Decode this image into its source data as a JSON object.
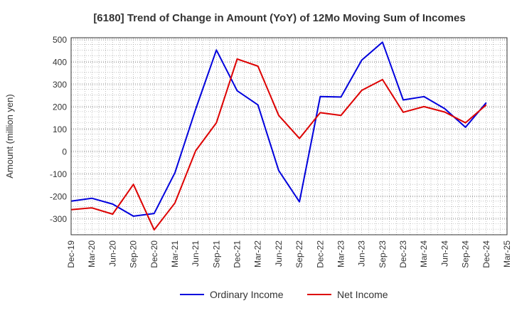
{
  "chart_data": {
    "type": "line",
    "title": "[6180]  Trend of Change in Amount (YoY) of 12Mo Moving Sum of Incomes",
    "xlabel": "",
    "ylabel": "Amount (million yen)",
    "ylim": [
      -370,
      510
    ],
    "yticks": [
      -300,
      -200,
      -100,
      0,
      100,
      200,
      300,
      400,
      500
    ],
    "grid": true,
    "legend_position": "bottom",
    "categories": [
      "Dec-19",
      "Mar-20",
      "Jun-20",
      "Sep-20",
      "Dec-20",
      "Mar-21",
      "Jun-21",
      "Sep-21",
      "Dec-21",
      "Mar-22",
      "Jun-22",
      "Sep-22",
      "Dec-22",
      "Mar-23",
      "Jun-23",
      "Sep-23",
      "Dec-23",
      "Mar-24",
      "Jun-24",
      "Sep-24",
      "Dec-24",
      "Mar-25"
    ],
    "series": [
      {
        "name": "Ordinary Income",
        "color": "#0000dd",
        "values": [
          -220,
          -207,
          -233,
          -287,
          -275,
          -93,
          190,
          455,
          273,
          210,
          -83,
          -223,
          247,
          245,
          410,
          490,
          232,
          247,
          193,
          110,
          220,
          null
        ]
      },
      {
        "name": "Net Income",
        "color": "#dd0000",
        "values": [
          -258,
          -250,
          -278,
          -145,
          -348,
          -228,
          5,
          130,
          415,
          383,
          163,
          60,
          175,
          163,
          275,
          323,
          177,
          202,
          178,
          130,
          210,
          null
        ]
      }
    ]
  }
}
